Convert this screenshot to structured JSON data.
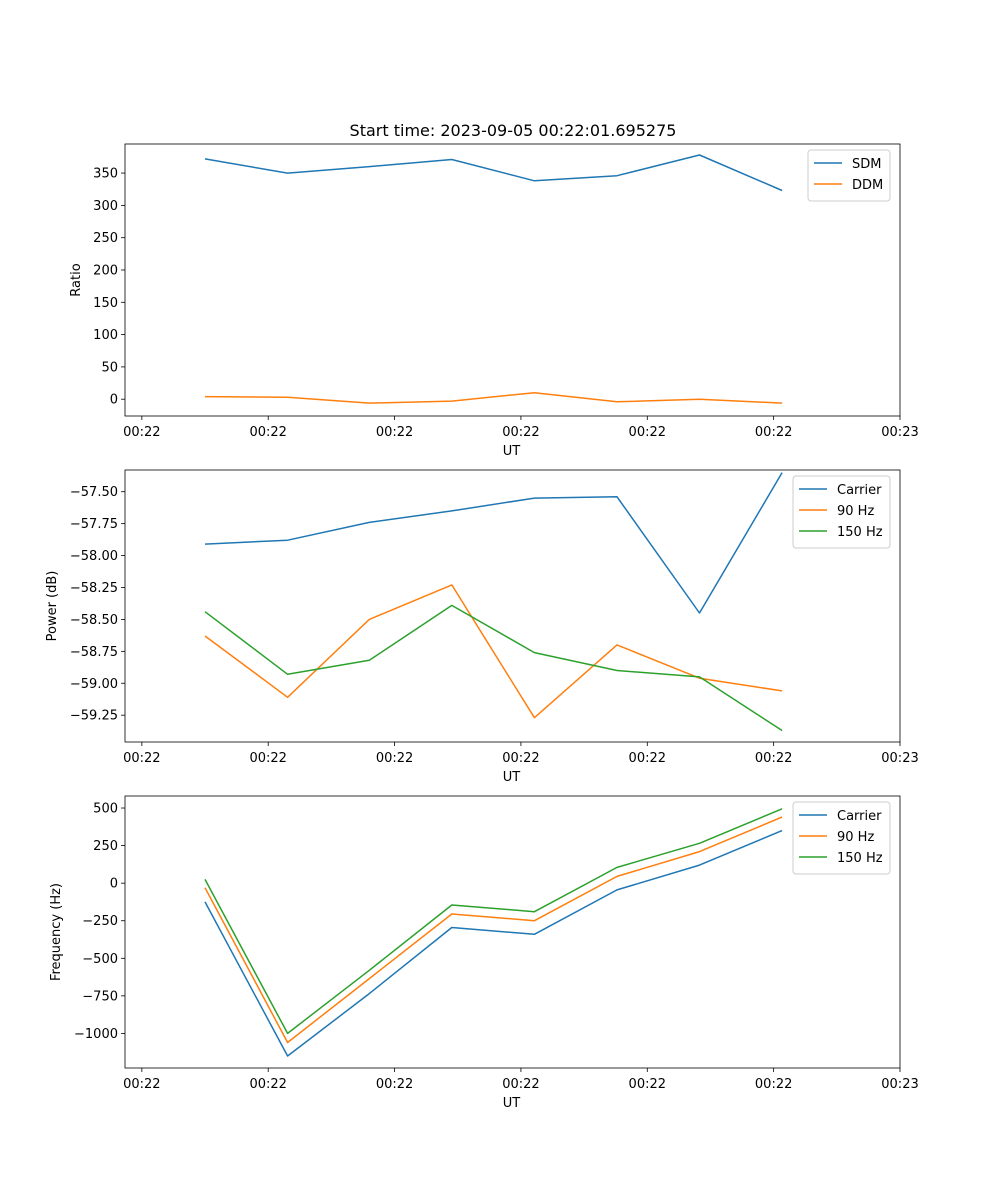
{
  "figure_title": "Start time: 2023-09-05 00:22:01.695275",
  "colors": {
    "blue": "#1f77b4",
    "orange": "#ff7f0e",
    "green": "#2ca02c"
  },
  "chart_data": [
    {
      "type": "line",
      "title": "Start time: 2023-09-05 00:22:01.695275",
      "xlabel": "UT",
      "ylabel": "Ratio",
      "xlim": [
        -0.2,
        9.0
      ],
      "x_ticks": [
        0,
        1.5,
        3,
        4.5,
        6,
        7.5,
        9
      ],
      "x_tick_labels": [
        "00:22",
        "00:22",
        "00:22",
        "00:22",
        "00:22",
        "00:22",
        "00:23"
      ],
      "ylim": [
        -26,
        395
      ],
      "y_ticks": [
        0,
        50,
        100,
        150,
        200,
        250,
        300,
        350
      ],
      "y_tick_labels": [
        "0",
        "50",
        "100",
        "150",
        "200",
        "250",
        "300",
        "350"
      ],
      "x": [
        0.75,
        1.73,
        2.7,
        3.68,
        4.66,
        5.64,
        6.62,
        7.6
      ],
      "legend_position": "top-right",
      "series": [
        {
          "name": "SDM",
          "color": "#1f77b4",
          "values": [
            372,
            350,
            360,
            371,
            338,
            346,
            378,
            323
          ]
        },
        {
          "name": "DDM",
          "color": "#ff7f0e",
          "values": [
            4,
            3,
            -6,
            -3,
            10,
            -4,
            0,
            -6
          ]
        }
      ]
    },
    {
      "type": "line",
      "title": "",
      "xlabel": "UT",
      "ylabel": "Power (dB)",
      "xlim": [
        -0.2,
        9.0
      ],
      "x_ticks": [
        0,
        1.5,
        3,
        4.5,
        6,
        7.5,
        9
      ],
      "x_tick_labels": [
        "00:22",
        "00:22",
        "00:22",
        "00:22",
        "00:22",
        "00:22",
        "00:23"
      ],
      "ylim": [
        -59.46,
        -57.33
      ],
      "y_ticks": [
        -57.5,
        -57.75,
        -58.0,
        -58.25,
        -58.5,
        -58.75,
        -59.0,
        -59.25
      ],
      "y_tick_labels": [
        "−57.50",
        "−57.75",
        "−58.00",
        "−58.25",
        "−58.50",
        "−58.75",
        "−59.00",
        "−59.25"
      ],
      "x": [
        0.75,
        1.73,
        2.7,
        3.68,
        4.66,
        5.64,
        6.62,
        7.6
      ],
      "legend_position": "top-right",
      "series": [
        {
          "name": "Carrier",
          "color": "#1f77b4",
          "values": [
            -57.91,
            -57.88,
            -57.74,
            -57.65,
            -57.55,
            -57.54,
            -58.45,
            -57.35
          ]
        },
        {
          "name": "90 Hz",
          "color": "#ff7f0e",
          "values": [
            -58.63,
            -59.11,
            -58.5,
            -58.23,
            -59.27,
            -58.7,
            -58.96,
            -59.06
          ]
        },
        {
          "name": "150 Hz",
          "color": "#2ca02c",
          "values": [
            -58.44,
            -58.93,
            -58.82,
            -58.39,
            -58.76,
            -58.9,
            -58.95,
            -59.37
          ]
        }
      ]
    },
    {
      "type": "line",
      "title": "",
      "xlabel": "UT",
      "ylabel": "Frequency (Hz)",
      "xlim": [
        -0.2,
        9.0
      ],
      "x_ticks": [
        0,
        1.5,
        3,
        4.5,
        6,
        7.5,
        9
      ],
      "x_tick_labels": [
        "00:22",
        "00:22",
        "00:22",
        "00:22",
        "00:22",
        "00:22",
        "00:23"
      ],
      "ylim": [
        -1230,
        580
      ],
      "y_ticks": [
        500,
        250,
        0,
        -250,
        -500,
        -750,
        -1000
      ],
      "y_tick_labels": [
        "500",
        "250",
        "0",
        "−250",
        "−500",
        "−750",
        "−1000"
      ],
      "x": [
        0.75,
        1.73,
        2.7,
        3.68,
        4.66,
        5.64,
        6.62,
        7.6
      ],
      "legend_position": "top-right",
      "series": [
        {
          "name": "Carrier",
          "color": "#1f77b4",
          "values": [
            -125,
            -1150,
            -735,
            -295,
            -340,
            -45,
            120,
            350
          ]
        },
        {
          "name": "90 Hz",
          "color": "#ff7f0e",
          "values": [
            -30,
            -1060,
            -635,
            -205,
            -250,
            45,
            210,
            440
          ]
        },
        {
          "name": "150 Hz",
          "color": "#2ca02c",
          "values": [
            25,
            -1000,
            -580,
            -145,
            -190,
            105,
            265,
            495
          ]
        }
      ]
    }
  ]
}
